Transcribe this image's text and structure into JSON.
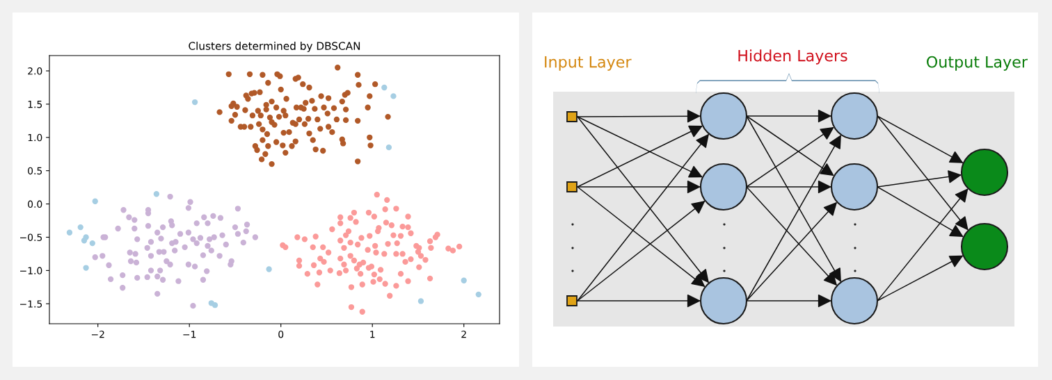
{
  "chart_data": [
    {
      "type": "scatter",
      "title": "Clusters determined by DBSCAN",
      "marker": "circle",
      "grid": false,
      "xlim": [
        -2.53,
        2.39
      ],
      "ylim": [
        -1.8,
        2.23
      ],
      "xticks": [
        {
          "value": -2,
          "label": "−2"
        },
        {
          "value": -1,
          "label": "−1"
        },
        0,
        1,
        2
      ],
      "yticks": [
        {
          "value": -1.5,
          "label": "−1.5"
        },
        {
          "value": -1.0,
          "label": "−1.0"
        },
        {
          "value": -0.5,
          "label": "−0.5"
        },
        {
          "value": 0,
          "label": "0.0"
        },
        0.5,
        {
          "value": 1,
          "label": "1.0"
        },
        1.5,
        {
          "value": 2,
          "label": "2.0"
        }
      ],
      "series": [
        {
          "color": "#a6cee3",
          "x": [
            -0.94,
            1.13,
            1.23,
            1.18,
            -1.36,
            -2.03,
            -2.31,
            -2.19,
            -2.13,
            -2.15,
            -2.06,
            -2.13,
            -0.13,
            -0.76,
            -0.72,
            2.0,
            1.53,
            2.16
          ],
          "values": [
            1.53,
            1.75,
            1.62,
            0.85,
            0.15,
            0.04,
            -0.43,
            -0.35,
            -0.5,
            -0.55,
            -0.59,
            -0.96,
            -0.98,
            -1.49,
            -1.52,
            -1.15,
            -1.46,
            -1.36
          ]
        },
        {
          "color": "#cab2d6",
          "x": [
            -1.21,
            -0.99,
            -1.01,
            -1.72,
            -1.45,
            -1.45,
            -1.66,
            -1.6,
            -1.78,
            -1.6,
            -1.45,
            -1.29,
            -1.2,
            -1.19,
            -0.92,
            -0.84,
            -0.8,
            -0.74,
            -0.66,
            -0.47,
            -0.5,
            -0.37,
            -0.38,
            -0.47,
            -0.28,
            -0.41,
            -1.94,
            -1.92,
            -2.03,
            -1.95,
            -1.88,
            -1.86,
            -1.73,
            -1.73,
            -1.64,
            -1.65,
            -1.59,
            -1.57,
            -1.58,
            -1.57,
            -1.46,
            -1.46,
            -1.42,
            -1.42,
            -1.42,
            -1.35,
            -1.31,
            -1.33,
            -1.28,
            -1.32,
            -1.35,
            -1.29,
            -1.35,
            -1.25,
            -1.21,
            -1.19,
            -1.15,
            -1.16,
            -1.12,
            -1.1,
            -1.01,
            -1.05,
            -1.01,
            -0.94,
            -0.96,
            -0.96,
            -0.92,
            -0.88,
            -0.85,
            -0.8,
            -0.78,
            -0.73,
            -0.76,
            -0.81,
            -0.85,
            -0.67,
            -0.64,
            -0.6,
            -0.55,
            -0.54
          ],
          "values": [
            0.11,
            0.03,
            -0.06,
            -0.09,
            -0.09,
            -0.14,
            -0.2,
            -0.24,
            -0.37,
            -0.37,
            -0.33,
            -0.35,
            -0.26,
            -0.32,
            -0.29,
            -0.2,
            -0.29,
            -0.18,
            -0.21,
            -0.07,
            -0.35,
            -0.31,
            -0.41,
            -0.45,
            -0.5,
            -0.58,
            -0.5,
            -0.5,
            -0.8,
            -0.78,
            -0.92,
            -1.13,
            -1.07,
            -1.26,
            -0.86,
            -0.73,
            -0.75,
            -0.53,
            -0.88,
            -1.11,
            -1.1,
            -0.66,
            -0.57,
            -0.78,
            -1.0,
            -0.43,
            -0.52,
            -0.72,
            -0.72,
            -1.0,
            -1.09,
            -1.14,
            -1.35,
            -0.86,
            -0.91,
            -0.59,
            -0.57,
            -0.7,
            -1.16,
            -0.45,
            -0.43,
            -0.65,
            -0.91,
            -0.94,
            -1.53,
            -0.53,
            -0.59,
            -0.51,
            -0.77,
            -0.63,
            -0.53,
            -0.5,
            -0.7,
            -1.01,
            -1.14,
            -0.78,
            -0.47,
            -0.61,
            -0.91,
            -0.86
          ]
        },
        {
          "color": "#fb9a99",
          "x": [
            1.05,
            1.16,
            0.8,
            0.96,
            1.14,
            1.26,
            1.02,
            1.39,
            0.65,
            0.76,
            0.82,
            0.65,
            0.56,
            0.74,
            0.71,
            1.07,
            1.06,
            1.15,
            1.21,
            1.33,
            1.39,
            1.42,
            1.23,
            1.31,
            1.17,
            1.27,
            0.97,
            0.88,
            1.03,
            0.65,
            0.76,
            0.84,
            0.69,
            0.18,
            0.26,
            0.38,
            0.35,
            0.46,
            0.52,
            0.02,
            0.05,
            0.2,
            0.2,
            0.29,
            0.36,
            0.43,
            0.47,
            0.42,
            0.54,
            0.4,
            0.65,
            0.69,
            0.64,
            0.71,
            0.76,
            0.8,
            0.86,
            0.83,
            0.9,
            0.87,
            0.77,
            0.89,
            0.77,
            0.89,
            0.95,
            1.04,
            0.96,
            0.99,
            1.02,
            1.01,
            1.08,
            1.09,
            1.13,
            1.14,
            1.19,
            1.26,
            1.26,
            1.33,
            1.36,
            1.31,
            1.39,
            1.42,
            1.48,
            1.51,
            1.51,
            1.58,
            1.63,
            1.64,
            1.63,
            1.69,
            1.71,
            1.83,
            1.88,
            1.95,
            1.53,
            1.5
          ],
          "values": [
            0.14,
            0.06,
            -0.13,
            -0.13,
            -0.08,
            -0.07,
            -0.19,
            -0.19,
            -0.2,
            -0.21,
            -0.27,
            -0.29,
            -0.38,
            -0.41,
            -0.47,
            -0.36,
            -0.41,
            -0.28,
            -0.32,
            -0.34,
            -0.35,
            -0.44,
            -0.47,
            -0.48,
            -0.6,
            -0.59,
            -0.48,
            -0.51,
            -0.63,
            -0.55,
            -0.58,
            -0.61,
            -0.66,
            -0.5,
            -0.53,
            -0.49,
            -0.65,
            -0.65,
            -0.73,
            -0.62,
            -0.65,
            -0.85,
            -0.93,
            -1.05,
            -0.92,
            -0.82,
            -0.87,
            -1.03,
            -1.0,
            -1.21,
            -0.82,
            -0.91,
            -1.04,
            -1.0,
            -0.78,
            -0.85,
            -0.91,
            -0.97,
            -0.88,
            -1.05,
            -1.25,
            -1.21,
            -1.55,
            -1.62,
            -0.69,
            -0.73,
            -0.96,
            -0.94,
            -1.06,
            -1.17,
            -1.13,
            -0.99,
            -0.75,
            -1.2,
            -1.38,
            -1.23,
            -0.75,
            -0.75,
            -0.87,
            -1.05,
            -1.16,
            -0.83,
            -0.63,
            -0.66,
            -0.95,
            -0.84,
            -0.56,
            -0.66,
            -1.12,
            -0.5,
            -0.46,
            -0.67,
            -0.7,
            -0.64,
            -0.78,
            -0.72
          ]
        },
        {
          "color": "#b15928",
          "x": [
            -0.57,
            -0.34,
            -0.2,
            -0.04,
            -0.01,
            0.62,
            0.84,
            0.85,
            1.03,
            0.16,
            0.19,
            -0.14,
            0.24,
            0.31,
            0.0,
            0.7,
            0.73,
            0.97,
            -0.32,
            -0.38,
            -0.36,
            -0.29,
            -0.23,
            -0.52,
            -0.54,
            -0.67,
            -0.48,
            -0.5,
            -0.39,
            -0.54,
            -0.44,
            -0.4,
            -0.33,
            -0.31,
            -0.25,
            -0.22,
            -0.16,
            -0.1,
            -0.16,
            -0.24,
            -0.2,
            -0.15,
            -0.12,
            -0.1,
            -0.07,
            -0.02,
            -0.05,
            0.03,
            0.06,
            0.05,
            0.13,
            0.17,
            0.22,
            0.25,
            0.2,
            0.26,
            0.27,
            0.34,
            0.37,
            0.3,
            0.4,
            0.43,
            0.35,
            0.31,
            0.44,
            0.52,
            0.47,
            0.51,
            0.52,
            0.56,
            0.58,
            0.61,
            0.67,
            0.71,
            0.71,
            0.67,
            0.68,
            0.84,
            0.95,
            1.17,
            0.97,
            0.98,
            0.84,
            0.46,
            0.38,
            0.16,
            0.12,
            0.05,
            0.02,
            -0.05,
            -0.1,
            -0.21,
            -0.17,
            -0.26,
            -0.28,
            -0.14,
            -0.2,
            0.03,
            0.09,
            0.16
          ],
          "values": [
            1.95,
            1.95,
            1.94,
            1.95,
            1.92,
            2.05,
            1.94,
            1.79,
            1.8,
            1.88,
            1.9,
            1.82,
            1.8,
            1.75,
            1.72,
            1.64,
            1.67,
            1.62,
            1.66,
            1.63,
            1.58,
            1.67,
            1.68,
            1.51,
            1.47,
            1.38,
            1.46,
            1.34,
            1.41,
            1.25,
            1.16,
            1.16,
            1.16,
            1.33,
            1.4,
            1.33,
            1.49,
            1.54,
            1.42,
            1.2,
            1.12,
            1.05,
            1.3,
            1.23,
            1.19,
            1.31,
            1.45,
            1.4,
            1.58,
            1.33,
            1.22,
            1.45,
            1.45,
            1.43,
            1.27,
            1.2,
            1.52,
            1.55,
            1.43,
            1.28,
            1.27,
            1.13,
            0.96,
            1.06,
            1.62,
            1.59,
            1.45,
            1.36,
            1.16,
            1.08,
            1.44,
            1.27,
            1.54,
            1.42,
            1.26,
            0.97,
            0.91,
            1.25,
            1.45,
            1.31,
            1.0,
            0.88,
            0.64,
            0.8,
            0.82,
            0.94,
            0.87,
            0.77,
            0.88,
            0.93,
            0.6,
            0.67,
            0.75,
            0.81,
            0.87,
            0.87,
            0.96,
            1.07,
            1.08,
            1.2
          ]
        }
      ]
    },
    {
      "type": "other",
      "annotations": [
        "Input Layer",
        "Hidden Layers",
        "Output Layer"
      ],
      "colors": [
        "#d4870f",
        "#d0101c",
        "#0a7d0a"
      ]
    }
  ]
}
